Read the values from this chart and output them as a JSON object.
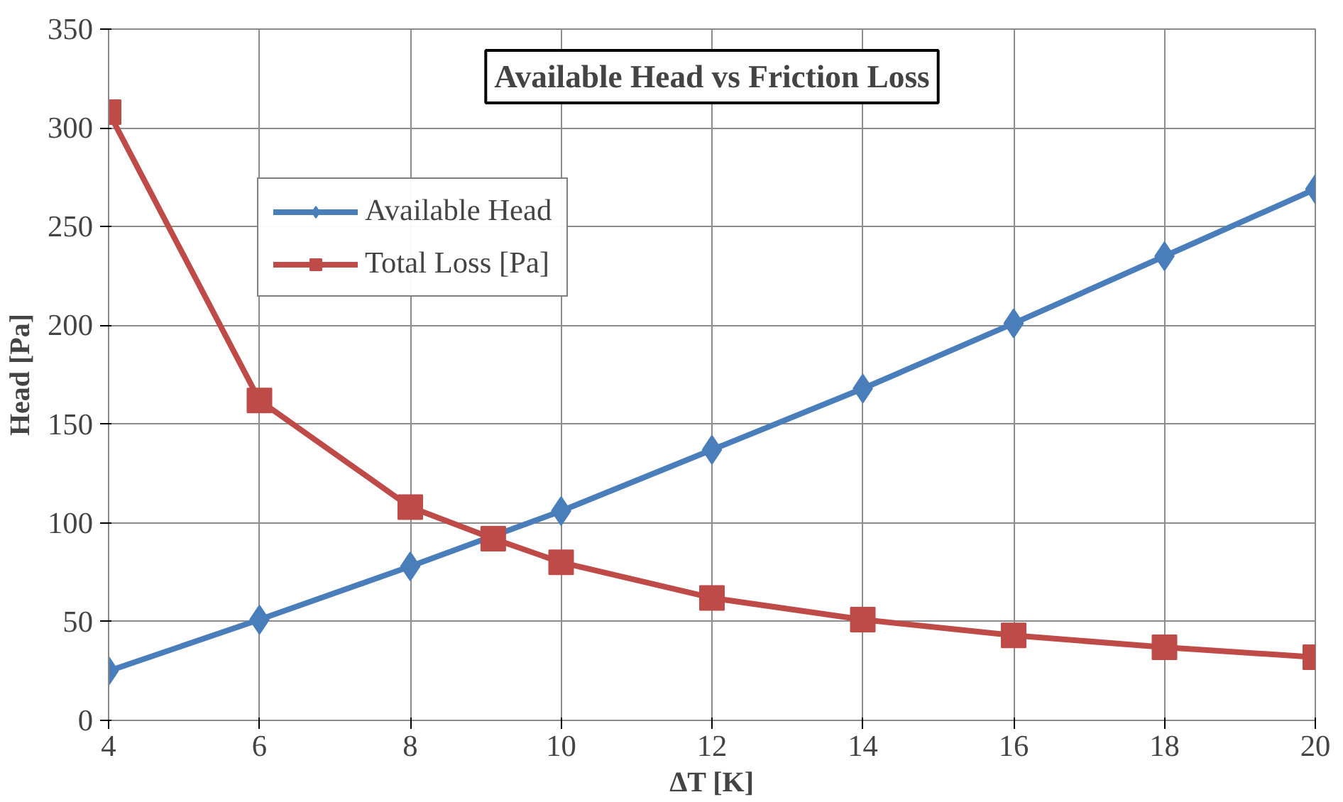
{
  "chart_data": {
    "type": "line",
    "title": "Available Head vs Friction Loss",
    "xlabel": "ΔT [K]",
    "ylabel": "Head [Pa]",
    "xlim": [
      4,
      20
    ],
    "xticks": [
      4,
      6,
      8,
      10,
      12,
      14,
      16,
      18,
      20
    ],
    "ylim": [
      0,
      350
    ],
    "yticks": [
      0,
      50,
      100,
      150,
      200,
      250,
      300,
      350
    ],
    "grid": true,
    "legend": "top left",
    "line_style": "solid",
    "series": [
      {
        "name": "Available Head",
        "color": "#4a7ebb",
        "marker": "diamond",
        "x": [
          4,
          6,
          8,
          10,
          12,
          14,
          16,
          18,
          20
        ],
        "values": [
          25,
          51,
          78,
          106,
          137,
          168,
          201,
          235,
          269
        ]
      },
      {
        "name": "Total Loss [Pa]",
        "color": "#be4b48",
        "marker": "square",
        "x": [
          4,
          6,
          8,
          9.1,
          10,
          12,
          14,
          16,
          18,
          20
        ],
        "values": [
          308,
          162,
          108,
          92,
          80,
          62,
          51,
          43,
          37,
          32
        ]
      }
    ]
  }
}
